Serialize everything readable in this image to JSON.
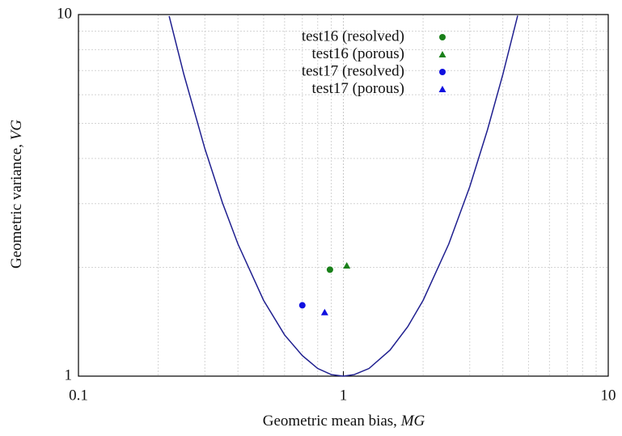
{
  "chart_data": {
    "type": "scatter",
    "x_label": {
      "text": "Geometric mean bias, ",
      "symbol": "MG"
    },
    "y_label": {
      "text": "Geometric variance, ",
      "symbol": "VG"
    },
    "xlim": [
      0.1,
      10
    ],
    "ylim": [
      1,
      10
    ],
    "xticks": [
      0.1,
      1,
      10
    ],
    "yticks": [
      1,
      10
    ],
    "log_x": true,
    "log_y": true,
    "grid": true,
    "legend": "top",
    "series": [
      {
        "marker": "line",
        "color": "#1f1f8f",
        "x": [
          0.22,
          0.25,
          0.3,
          0.35,
          0.4,
          0.5,
          0.6,
          0.7,
          0.8,
          0.9,
          1,
          1.1,
          1.25,
          1.5,
          1.75,
          2,
          2.5,
          3,
          3.5,
          4,
          4.55
        ],
        "values": [
          9.9,
          6.83,
          4.26,
          3.01,
          2.32,
          1.62,
          1.3,
          1.14,
          1.05,
          1.01,
          1,
          1.01,
          1.05,
          1.18,
          1.37,
          1.62,
          2.32,
          3.34,
          4.8,
          6.83,
          9.93
        ]
      },
      {
        "name": "test16 (resolved)",
        "marker": "circle",
        "color": "#1a801a",
        "x": [
          0.89
        ],
        "values": [
          1.97
        ]
      },
      {
        "name": "test16 (porous)",
        "marker": "triangle",
        "color": "#1a801a",
        "x": [
          1.03
        ],
        "values": [
          2.02
        ]
      },
      {
        "name": "test17 (resolved)",
        "marker": "circle",
        "color": "#1010e0",
        "x": [
          0.7
        ],
        "values": [
          1.57
        ]
      },
      {
        "name": "test17 (porous)",
        "marker": "triangle",
        "color": "#1010e0",
        "x": [
          0.85
        ],
        "values": [
          1.5
        ]
      }
    ]
  }
}
